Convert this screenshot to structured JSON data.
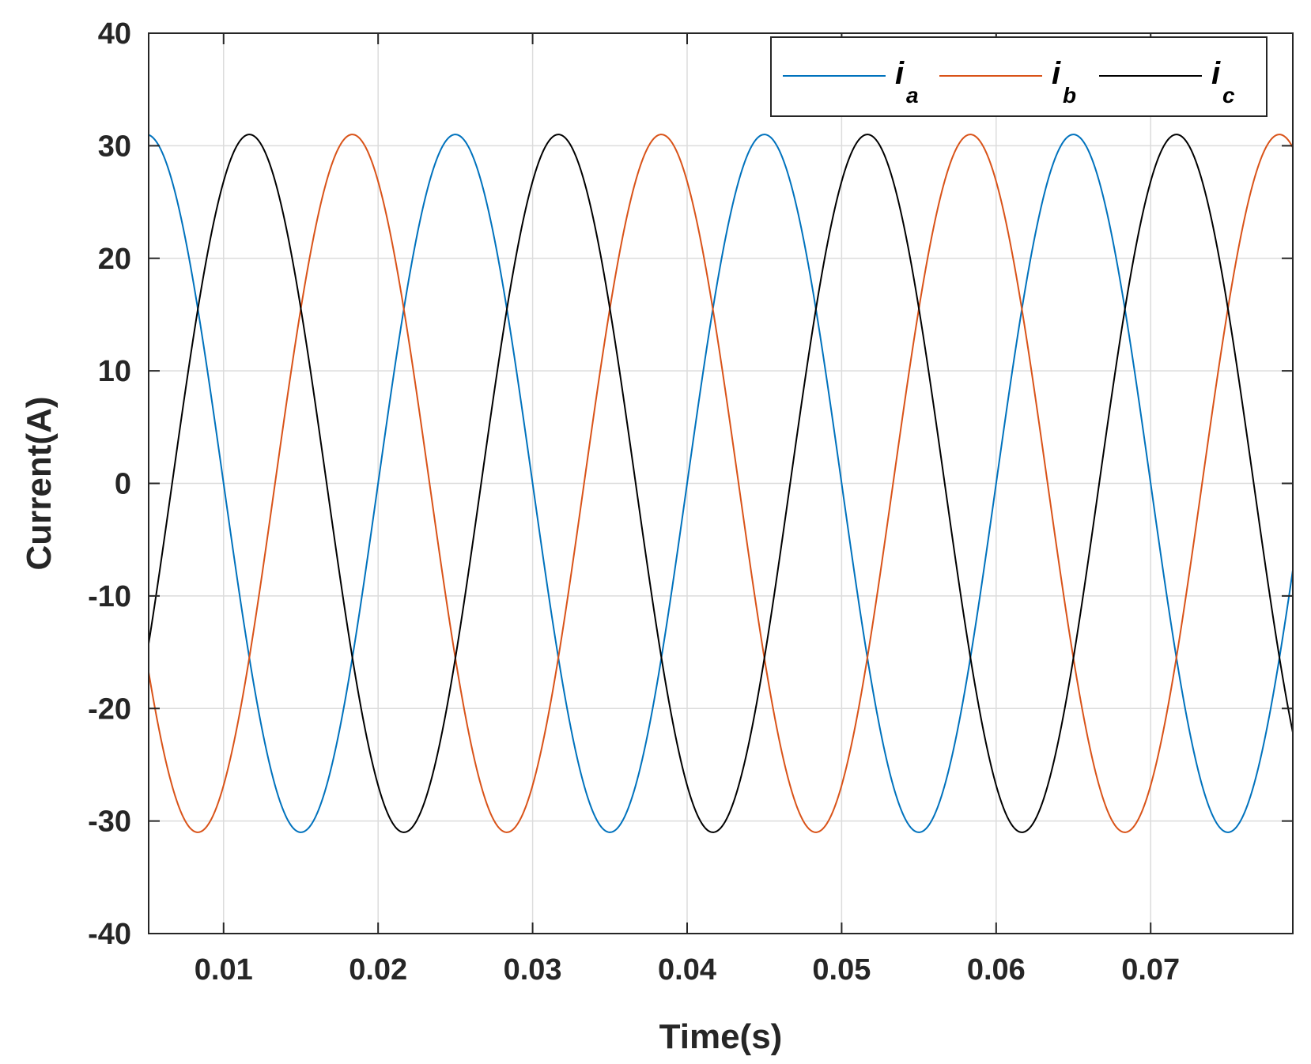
{
  "chart_data": {
    "type": "line",
    "title": "",
    "xlabel": "Time(s)",
    "ylabel": "Current(A)",
    "xlim": [
      0.00515,
      0.0792
    ],
    "ylim": [
      -40,
      40
    ],
    "x_ticks": [
      "0.01",
      "0.02",
      "0.03",
      "0.04",
      "0.05",
      "0.06",
      "0.07"
    ],
    "x_tick_values": [
      0.01,
      0.02,
      0.03,
      0.04,
      0.05,
      0.06,
      0.07
    ],
    "y_ticks": [
      "-40",
      "-30",
      "-20",
      "-10",
      "0",
      "10",
      "20",
      "30",
      "40"
    ],
    "y_tick_values": [
      -40,
      -30,
      -20,
      -10,
      0,
      10,
      20,
      30,
      40
    ],
    "grid": true,
    "legend_placement": "top-right",
    "legend_orientation": "horizontal",
    "series": [
      {
        "name": "i",
        "subscript": "a",
        "color": "#0072BD",
        "amplitude": 31,
        "frequency_hz": 50,
        "peak_time_s": 0.005
      },
      {
        "name": "i",
        "subscript": "b",
        "color": "#D95319",
        "amplitude": 31,
        "frequency_hz": 50,
        "peak_time_s": 0.01833
      },
      {
        "name": "i",
        "subscript": "c",
        "color": "#000000",
        "amplitude": 31,
        "frequency_hz": 50,
        "peak_time_s": 0.01167
      }
    ]
  }
}
